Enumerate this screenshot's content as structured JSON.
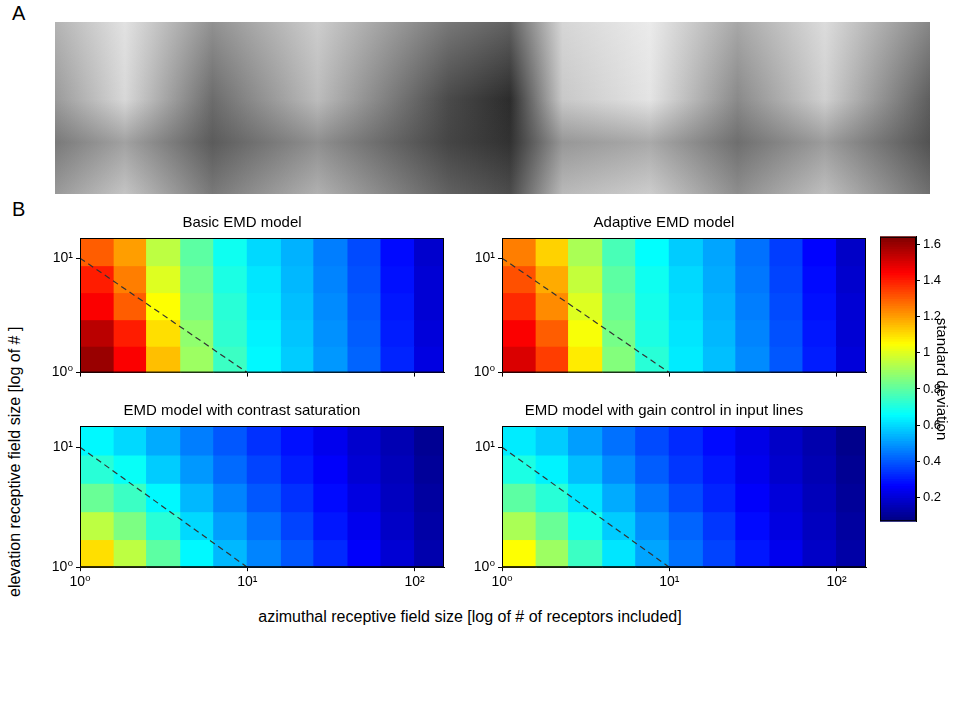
{
  "panel_labels": [
    "A",
    "B"
  ],
  "xlabel": "azimuthal receptive field size [log of # of receptors included]",
  "ylabel": "elevation receptive field size [log of # ]",
  "colorbar": {
    "label": "standard deviation",
    "range": [
      0.07,
      1.64
    ],
    "ticks": [
      0.2,
      0.4,
      0.6,
      0.8,
      1,
      1.2,
      1.4,
      1.6
    ]
  },
  "chart_data": [
    {
      "type": "heatmap",
      "title": "Basic EMD model",
      "log": true,
      "grid": false,
      "tick_labels": "y",
      "xlim": [
        1,
        150
      ],
      "ylim": [
        1,
        15
      ],
      "xticks": [
        {
          "value": 1,
          "label": "10⁰"
        },
        {
          "value": 10,
          "label": "10¹"
        },
        {
          "value": 100,
          "label": "10²"
        }
      ],
      "yticks": [
        {
          "value": 1,
          "label": "10⁰"
        },
        {
          "value": 10,
          "label": "10¹"
        }
      ],
      "x_edges": [
        1,
        1.6,
        2.5,
        4,
        6.3,
        10,
        16,
        25,
        40,
        63,
        100,
        150
      ],
      "y_edges": [
        1,
        1.7,
        2.9,
        5,
        8.6,
        15
      ],
      "cells": [
        [
          1.6,
          1.45,
          1.15,
          0.9,
          0.75,
          0.65,
          0.58,
          0.5,
          0.42,
          0.32,
          0.22
        ],
        [
          1.55,
          1.4,
          1.1,
          0.88,
          0.73,
          0.64,
          0.57,
          0.49,
          0.41,
          0.31,
          0.21
        ],
        [
          1.45,
          1.3,
          1.05,
          0.85,
          0.72,
          0.63,
          0.56,
          0.48,
          0.4,
          0.3,
          0.2
        ],
        [
          1.4,
          1.25,
          1.0,
          0.83,
          0.7,
          0.62,
          0.55,
          0.47,
          0.39,
          0.29,
          0.2
        ],
        [
          1.3,
          1.2,
          0.95,
          0.8,
          0.68,
          0.6,
          0.54,
          0.46,
          0.38,
          0.28,
          0.19
        ]
      ],
      "dashed_line": {
        "x": [
          1,
          10
        ],
        "y": [
          10,
          1
        ],
        "line_style": "dashed",
        "color": "#333333"
      }
    },
    {
      "type": "heatmap",
      "title": "Adaptive EMD model",
      "log": true,
      "grid": false,
      "tick_labels": "y",
      "xlim": [
        1,
        150
      ],
      "ylim": [
        1,
        15
      ],
      "xticks": [
        {
          "value": 1,
          "label": "10⁰"
        },
        {
          "value": 10,
          "label": "10¹"
        },
        {
          "value": 100,
          "label": "10²"
        }
      ],
      "yticks": [
        {
          "value": 1,
          "label": "10⁰"
        },
        {
          "value": 10,
          "label": "10¹"
        }
      ],
      "x_edges": [
        1,
        1.6,
        2.5,
        4,
        6.3,
        10,
        16,
        25,
        40,
        63,
        100,
        150
      ],
      "y_edges": [
        1,
        1.7,
        2.9,
        5,
        8.6,
        15
      ],
      "cells": [
        [
          1.5,
          1.35,
          1.08,
          0.86,
          0.72,
          0.63,
          0.56,
          0.48,
          0.4,
          0.31,
          0.21
        ],
        [
          1.45,
          1.3,
          1.04,
          0.84,
          0.7,
          0.62,
          0.55,
          0.47,
          0.39,
          0.3,
          0.2
        ],
        [
          1.38,
          1.23,
          1.0,
          0.82,
          0.69,
          0.61,
          0.54,
          0.46,
          0.38,
          0.29,
          0.2
        ],
        [
          1.32,
          1.18,
          0.96,
          0.8,
          0.68,
          0.6,
          0.53,
          0.45,
          0.37,
          0.28,
          0.19
        ],
        [
          1.25,
          1.12,
          0.92,
          0.77,
          0.66,
          0.58,
          0.52,
          0.44,
          0.36,
          0.27,
          0.18
        ]
      ],
      "dashed_line": {
        "x": [
          1,
          10
        ],
        "y": [
          10,
          1
        ],
        "line_style": "dashed",
        "color": "#333333"
      }
    },
    {
      "type": "heatmap",
      "title": "EMD model with contrast saturation",
      "log": true,
      "grid": false,
      "xlim": [
        1,
        150
      ],
      "ylim": [
        1,
        15
      ],
      "xticks": [
        {
          "value": 1,
          "label": "10⁰"
        },
        {
          "value": 10,
          "label": "10¹"
        },
        {
          "value": 100,
          "label": "10²"
        }
      ],
      "yticks": [
        {
          "value": 1,
          "label": "10⁰"
        },
        {
          "value": 10,
          "label": "10¹"
        }
      ],
      "x_edges": [
        1,
        1.6,
        2.5,
        4,
        6.3,
        10,
        16,
        25,
        40,
        63,
        100,
        150
      ],
      "y_edges": [
        1,
        1.7,
        2.9,
        5,
        8.6,
        15
      ],
      "cells": [
        [
          1.1,
          0.95,
          0.8,
          0.65,
          0.55,
          0.47,
          0.4,
          0.33,
          0.26,
          0.2,
          0.14
        ],
        [
          0.95,
          0.85,
          0.72,
          0.6,
          0.51,
          0.44,
          0.37,
          0.3,
          0.24,
          0.18,
          0.13
        ],
        [
          0.82,
          0.75,
          0.65,
          0.55,
          0.47,
          0.4,
          0.34,
          0.28,
          0.22,
          0.17,
          0.12
        ],
        [
          0.72,
          0.67,
          0.58,
          0.5,
          0.43,
          0.37,
          0.31,
          0.26,
          0.2,
          0.16,
          0.11
        ],
        [
          0.65,
          0.6,
          0.53,
          0.46,
          0.4,
          0.34,
          0.29,
          0.24,
          0.19,
          0.15,
          0.1
        ]
      ],
      "dashed_line": {
        "x": [
          1,
          10
        ],
        "y": [
          10,
          1
        ],
        "line_style": "dashed",
        "color": "#333333"
      }
    },
    {
      "type": "heatmap",
      "title": "EMD model with gain control in input lines",
      "log": true,
      "grid": false,
      "xlim": [
        1,
        150
      ],
      "ylim": [
        1,
        15
      ],
      "xticks": [
        {
          "value": 1,
          "label": "10⁰"
        },
        {
          "value": 10,
          "label": "10¹"
        },
        {
          "value": 100,
          "label": "10²"
        }
      ],
      "yticks": [
        {
          "value": 1,
          "label": "10⁰"
        },
        {
          "value": 10,
          "label": "10¹"
        }
      ],
      "x_edges": [
        1,
        1.6,
        2.5,
        4,
        6.3,
        10,
        16,
        25,
        40,
        63,
        100,
        150
      ],
      "y_edges": [
        1,
        1.7,
        2.9,
        5,
        8.6,
        15
      ],
      "cells": [
        [
          1.05,
          0.9,
          0.75,
          0.62,
          0.52,
          0.44,
          0.37,
          0.3,
          0.24,
          0.18,
          0.13
        ],
        [
          0.92,
          0.82,
          0.69,
          0.58,
          0.49,
          0.42,
          0.35,
          0.28,
          0.22,
          0.17,
          0.12
        ],
        [
          0.8,
          0.72,
          0.62,
          0.53,
          0.45,
          0.38,
          0.32,
          0.26,
          0.21,
          0.16,
          0.11
        ],
        [
          0.7,
          0.64,
          0.56,
          0.48,
          0.41,
          0.35,
          0.3,
          0.24,
          0.19,
          0.15,
          0.1
        ],
        [
          0.63,
          0.58,
          0.51,
          0.44,
          0.38,
          0.33,
          0.28,
          0.23,
          0.18,
          0.14,
          0.09
        ]
      ],
      "dashed_line": {
        "x": [
          1,
          10
        ],
        "y": [
          10,
          1
        ],
        "line_style": "dashed",
        "color": "#333333"
      }
    }
  ]
}
